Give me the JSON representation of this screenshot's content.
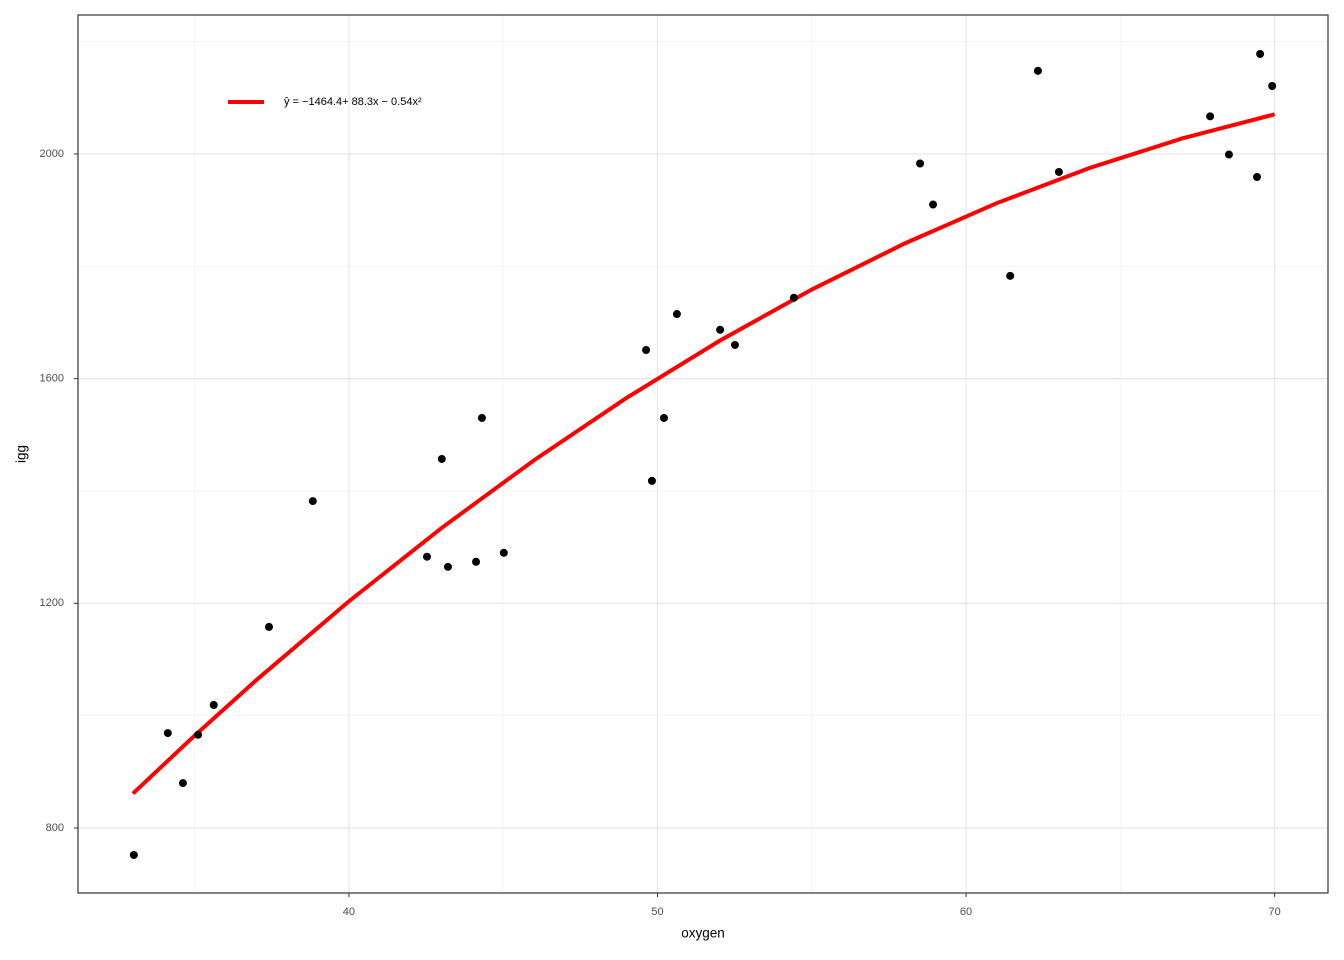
{
  "chart_data": {
    "type": "scatter",
    "x_label": "oxygen",
    "y_label": "igg",
    "xlim": [
      31.22,
      71.73
    ],
    "ylim": [
      684.3,
      2247.4
    ],
    "xticks": [
      40,
      50,
      60,
      70
    ],
    "yticks": [
      800,
      1200,
      1600,
      2000
    ],
    "minor_xticks": [
      35,
      45,
      55,
      65
    ],
    "minor_yticks": [
      1000,
      1400,
      1800,
      2200
    ],
    "grid": true,
    "point_color": "#000000",
    "x": [
      33.03,
      34.13,
      34.62,
      35.11,
      35.62,
      37.41,
      38.83,
      42.53,
      43.01,
      43.21,
      44.12,
      44.31,
      45.02,
      49.63,
      49.82,
      50.21,
      50.63,
      52.03,
      52.51,
      54.42,
      58.51,
      58.93,
      61.43,
      62.33,
      63.01,
      67.91,
      68.52,
      69.43,
      69.53,
      69.92
    ],
    "values": [
      752,
      969,
      880,
      966,
      1019,
      1158,
      1382,
      1283,
      1457,
      1265,
      1274,
      1530,
      1290,
      1651,
      1418,
      1530,
      1715,
      1687,
      1660,
      1744,
      1983,
      1910,
      1783,
      2148,
      1968,
      2067,
      1999,
      1959,
      2178,
      2121
    ],
    "fit": {
      "label": "ŷ = −1464.4+ 88.3x − 0.54x²",
      "color": "#ff0000",
      "x": [
        33,
        35,
        37,
        40,
        43,
        46,
        49,
        52,
        55,
        58,
        61,
        64,
        67,
        70
      ],
      "values": [
        861.4,
        964.6,
        1063.4,
        1203.6,
        1334.0,
        1454.8,
        1565.8,
        1667.0,
        1758.6,
        1840.4,
        1912.6,
        1975.0,
        2027.6,
        2070.6
      ]
    }
  }
}
